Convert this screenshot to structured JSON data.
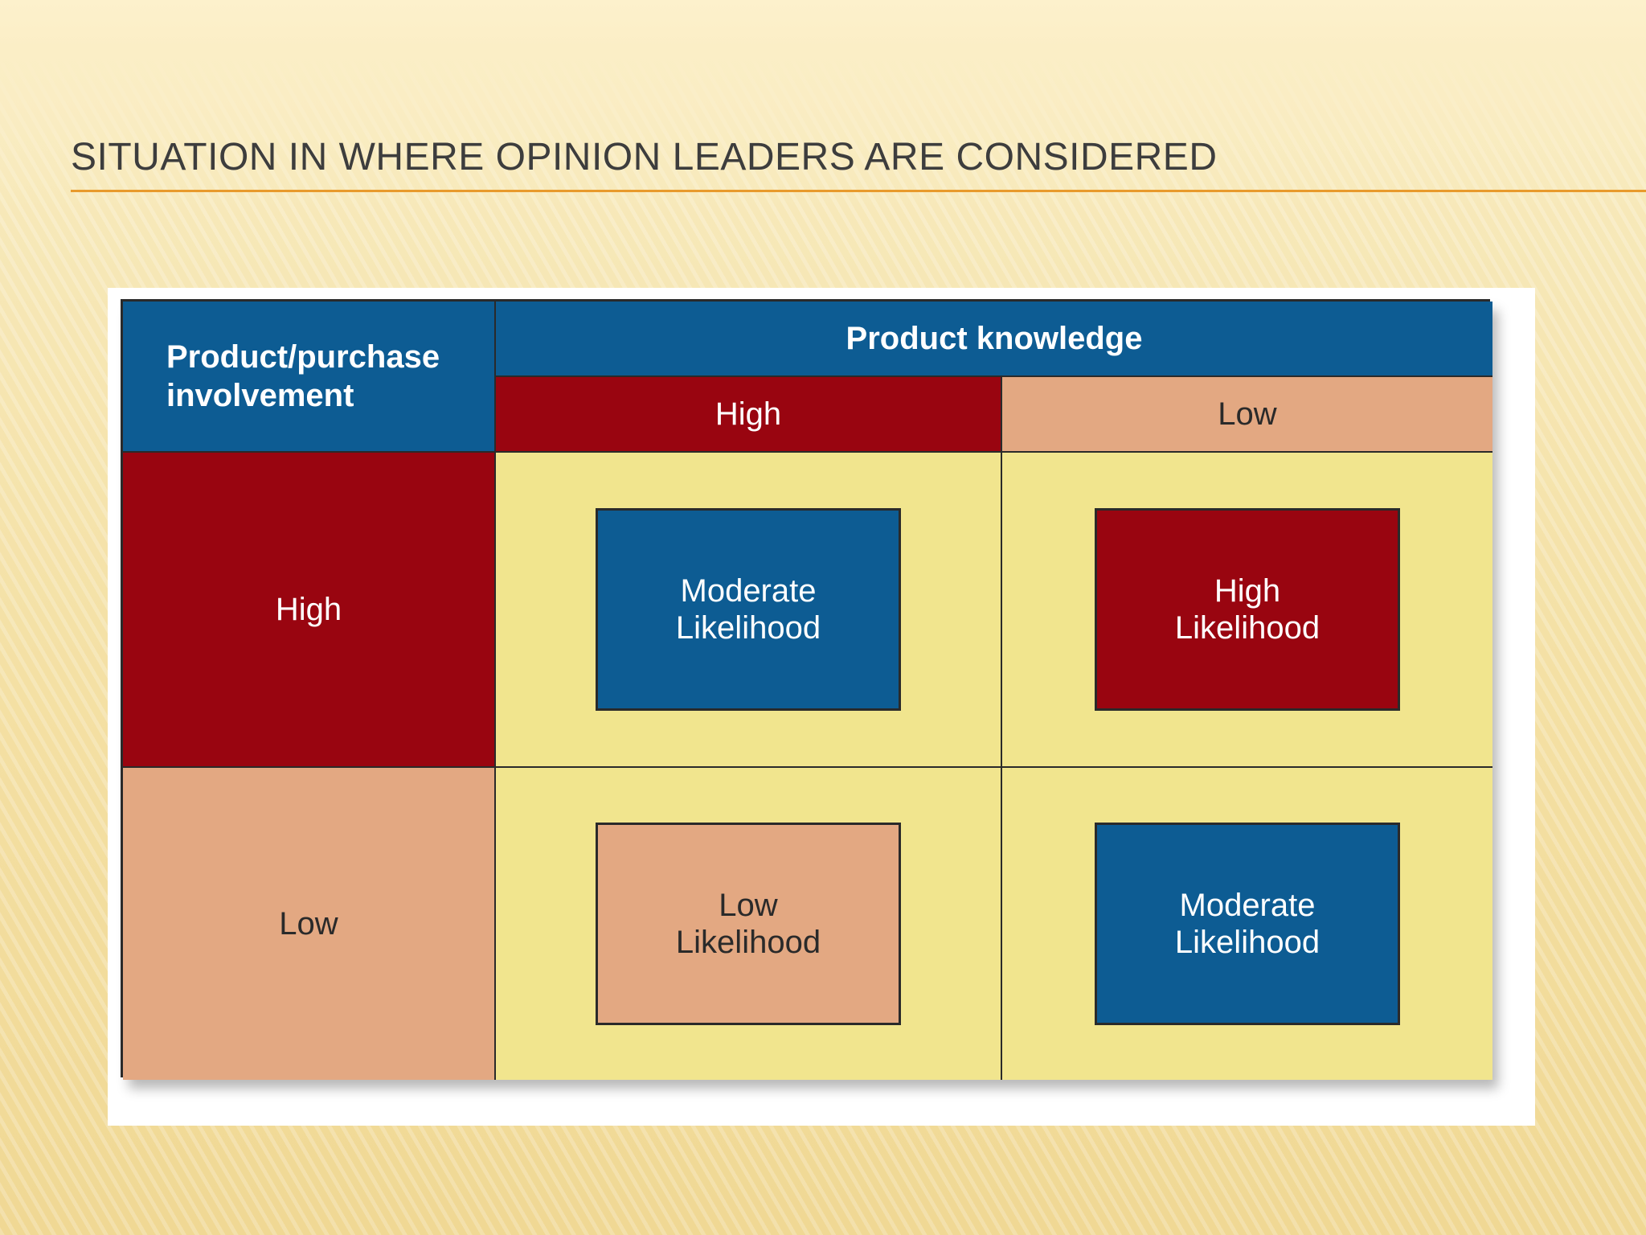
{
  "slide": {
    "title": "Situation in where opinion leaders are considered"
  },
  "matrix": {
    "corner_label": "Product/purchase\ninvolvement",
    "column_header": "Product knowledge",
    "columns": [
      "High",
      "Low"
    ],
    "rows": [
      "High",
      "Low"
    ],
    "cells": {
      "high_high": "Moderate\nLikelihood",
      "high_low": "High\nLikelihood",
      "low_high": "Low\nLikelihood",
      "low_low": "Moderate\nLikelihood"
    }
  },
  "colors": {
    "blue": "#0d5c93",
    "dark_red": "#990510",
    "tan": "#e3a882",
    "yellow": "#f1e58e",
    "title_rule": "#e89a2c"
  }
}
